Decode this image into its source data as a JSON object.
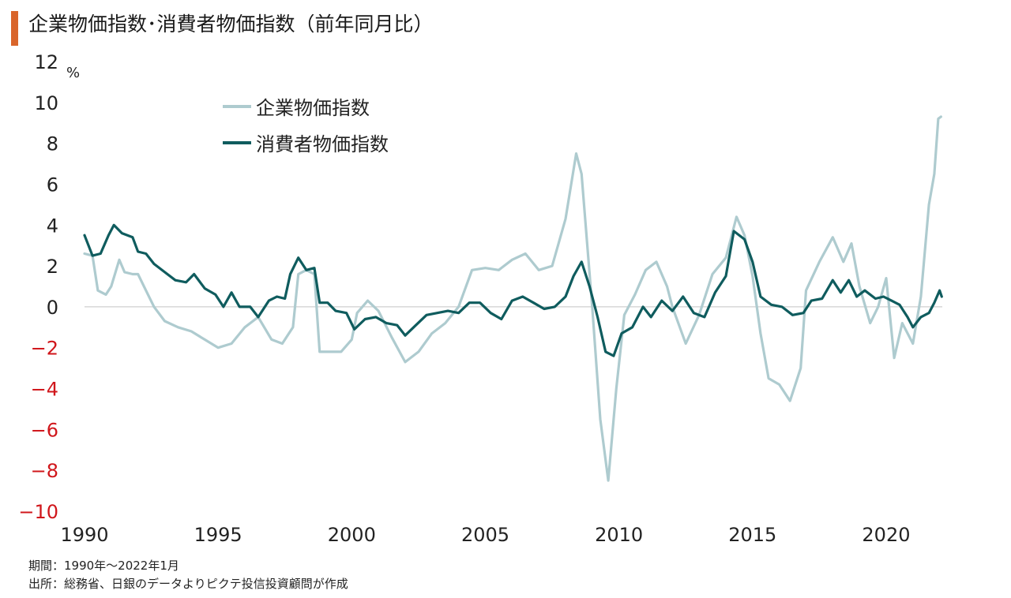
{
  "title": "企業物価指数･消費者物価指数（前年同月比）",
  "notes": {
    "period": "期間：1990年～2022年1月",
    "source": "出所：総務省、日銀のデータよりピクテ投信投資顧問が作成"
  },
  "colors": {
    "accent": "#d9652b",
    "cgpi": "#aecbcf",
    "cpi": "#0f5c5e",
    "negative_tick": "#d0161b",
    "zero_line": "#cfcfcf"
  },
  "chart_data": {
    "type": "line",
    "yunit": "%",
    "ylim": [
      -10,
      12
    ],
    "yticks": [
      12,
      10,
      8,
      6,
      4,
      2,
      0,
      -2,
      -4,
      -6,
      -8,
      -10
    ],
    "xlim": [
      1990.0,
      2022.1
    ],
    "xticks": [
      1990,
      1995,
      2000,
      2005,
      2010,
      2015,
      2020
    ],
    "grid": false,
    "legend_placement": "top-left",
    "series": [
      {
        "name": "企業物価指数",
        "color": "#aecbcf",
        "points": [
          [
            1990.0,
            2.6
          ],
          [
            1990.3,
            2.5
          ],
          [
            1990.5,
            0.8
          ],
          [
            1990.8,
            0.6
          ],
          [
            1991.0,
            1.0
          ],
          [
            1991.3,
            2.3
          ],
          [
            1991.5,
            1.7
          ],
          [
            1991.8,
            1.6
          ],
          [
            1992.0,
            1.6
          ],
          [
            1992.3,
            0.8
          ],
          [
            1992.6,
            0.0
          ],
          [
            1993.0,
            -0.7
          ],
          [
            1993.5,
            -1.0
          ],
          [
            1994.0,
            -1.2
          ],
          [
            1994.5,
            -1.6
          ],
          [
            1995.0,
            -2.0
          ],
          [
            1995.5,
            -1.8
          ],
          [
            1996.0,
            -1.0
          ],
          [
            1996.5,
            -0.5
          ],
          [
            1997.0,
            -1.6
          ],
          [
            1997.4,
            -1.8
          ],
          [
            1997.8,
            -1.0
          ],
          [
            1998.0,
            1.6
          ],
          [
            1998.3,
            1.8
          ],
          [
            1998.6,
            1.6
          ],
          [
            1998.8,
            -2.2
          ],
          [
            1999.2,
            -2.2
          ],
          [
            1999.6,
            -2.2
          ],
          [
            2000.0,
            -1.6
          ],
          [
            2000.2,
            -0.3
          ],
          [
            2000.6,
            0.3
          ],
          [
            2001.0,
            -0.2
          ],
          [
            2001.5,
            -1.5
          ],
          [
            2002.0,
            -2.7
          ],
          [
            2002.5,
            -2.2
          ],
          [
            2003.0,
            -1.3
          ],
          [
            2003.5,
            -0.8
          ],
          [
            2004.0,
            0.0
          ],
          [
            2004.5,
            1.8
          ],
          [
            2005.0,
            1.9
          ],
          [
            2005.5,
            1.8
          ],
          [
            2006.0,
            2.3
          ],
          [
            2006.5,
            2.6
          ],
          [
            2007.0,
            1.8
          ],
          [
            2007.5,
            2.0
          ],
          [
            2008.0,
            4.3
          ],
          [
            2008.4,
            7.5
          ],
          [
            2008.6,
            6.5
          ],
          [
            2009.0,
            0.0
          ],
          [
            2009.3,
            -5.5
          ],
          [
            2009.6,
            -8.5
          ],
          [
            2009.9,
            -4.0
          ],
          [
            2010.2,
            -0.4
          ],
          [
            2010.6,
            0.6
          ],
          [
            2011.0,
            1.8
          ],
          [
            2011.4,
            2.2
          ],
          [
            2011.8,
            1.0
          ],
          [
            2012.0,
            0.0
          ],
          [
            2012.5,
            -1.8
          ],
          [
            2013.0,
            -0.4
          ],
          [
            2013.5,
            1.6
          ],
          [
            2014.0,
            2.4
          ],
          [
            2014.4,
            4.4
          ],
          [
            2014.7,
            3.5
          ],
          [
            2015.0,
            1.5
          ],
          [
            2015.3,
            -1.3
          ],
          [
            2015.6,
            -3.5
          ],
          [
            2016.0,
            -3.8
          ],
          [
            2016.4,
            -4.6
          ],
          [
            2016.8,
            -3.0
          ],
          [
            2017.0,
            0.8
          ],
          [
            2017.5,
            2.2
          ],
          [
            2018.0,
            3.4
          ],
          [
            2018.4,
            2.2
          ],
          [
            2018.7,
            3.1
          ],
          [
            2019.0,
            1.0
          ],
          [
            2019.4,
            -0.8
          ],
          [
            2019.7,
            0.0
          ],
          [
            2020.0,
            1.4
          ],
          [
            2020.3,
            -2.5
          ],
          [
            2020.6,
            -0.8
          ],
          [
            2021.0,
            -1.8
          ],
          [
            2021.3,
            0.5
          ],
          [
            2021.6,
            5.0
          ],
          [
            2021.8,
            6.5
          ],
          [
            2021.95,
            9.2
          ],
          [
            2022.05,
            9.3
          ]
        ]
      },
      {
        "name": "消費者物価指数",
        "color": "#0f5c5e",
        "points": [
          [
            1990.0,
            3.5
          ],
          [
            1990.3,
            2.5
          ],
          [
            1990.6,
            2.6
          ],
          [
            1990.9,
            3.5
          ],
          [
            1991.1,
            4.0
          ],
          [
            1991.4,
            3.6
          ],
          [
            1991.8,
            3.4
          ],
          [
            1992.0,
            2.7
          ],
          [
            1992.3,
            2.6
          ],
          [
            1992.6,
            2.1
          ],
          [
            1993.0,
            1.7
          ],
          [
            1993.4,
            1.3
          ],
          [
            1993.8,
            1.2
          ],
          [
            1994.1,
            1.6
          ],
          [
            1994.5,
            0.9
          ],
          [
            1994.9,
            0.6
          ],
          [
            1995.2,
            0.0
          ],
          [
            1995.5,
            0.7
          ],
          [
            1995.8,
            0.0
          ],
          [
            1996.2,
            0.0
          ],
          [
            1996.5,
            -0.5
          ],
          [
            1996.9,
            0.3
          ],
          [
            1997.2,
            0.5
          ],
          [
            1997.5,
            0.4
          ],
          [
            1997.7,
            1.6
          ],
          [
            1998.0,
            2.4
          ],
          [
            1998.3,
            1.8
          ],
          [
            1998.6,
            1.9
          ],
          [
            1998.8,
            0.2
          ],
          [
            1999.1,
            0.2
          ],
          [
            1999.4,
            -0.2
          ],
          [
            1999.8,
            -0.3
          ],
          [
            2000.1,
            -1.1
          ],
          [
            2000.5,
            -0.6
          ],
          [
            2000.9,
            -0.5
          ],
          [
            2001.3,
            -0.8
          ],
          [
            2001.7,
            -0.9
          ],
          [
            2002.0,
            -1.4
          ],
          [
            2002.4,
            -0.9
          ],
          [
            2002.8,
            -0.4
          ],
          [
            2003.2,
            -0.3
          ],
          [
            2003.6,
            -0.2
          ],
          [
            2004.0,
            -0.3
          ],
          [
            2004.4,
            0.2
          ],
          [
            2004.8,
            0.2
          ],
          [
            2005.2,
            -0.3
          ],
          [
            2005.6,
            -0.6
          ],
          [
            2006.0,
            0.3
          ],
          [
            2006.4,
            0.5
          ],
          [
            2006.8,
            0.2
          ],
          [
            2007.2,
            -0.1
          ],
          [
            2007.6,
            0.0
          ],
          [
            2008.0,
            0.5
          ],
          [
            2008.3,
            1.5
          ],
          [
            2008.6,
            2.2
          ],
          [
            2008.9,
            1.0
          ],
          [
            2009.2,
            -0.5
          ],
          [
            2009.5,
            -2.2
          ],
          [
            2009.8,
            -2.4
          ],
          [
            2010.1,
            -1.3
          ],
          [
            2010.5,
            -1.0
          ],
          [
            2010.9,
            0.0
          ],
          [
            2011.2,
            -0.5
          ],
          [
            2011.6,
            0.3
          ],
          [
            2012.0,
            -0.2
          ],
          [
            2012.4,
            0.5
          ],
          [
            2012.8,
            -0.3
          ],
          [
            2013.2,
            -0.5
          ],
          [
            2013.6,
            0.7
          ],
          [
            2014.0,
            1.5
          ],
          [
            2014.3,
            3.7
          ],
          [
            2014.7,
            3.3
          ],
          [
            2015.0,
            2.2
          ],
          [
            2015.3,
            0.5
          ],
          [
            2015.7,
            0.1
          ],
          [
            2016.1,
            0.0
          ],
          [
            2016.5,
            -0.4
          ],
          [
            2016.9,
            -0.3
          ],
          [
            2017.2,
            0.3
          ],
          [
            2017.6,
            0.4
          ],
          [
            2018.0,
            1.3
          ],
          [
            2018.3,
            0.7
          ],
          [
            2018.6,
            1.3
          ],
          [
            2018.9,
            0.5
          ],
          [
            2019.2,
            0.8
          ],
          [
            2019.6,
            0.4
          ],
          [
            2019.9,
            0.5
          ],
          [
            2020.2,
            0.3
          ],
          [
            2020.5,
            0.1
          ],
          [
            2020.8,
            -0.5
          ],
          [
            2021.0,
            -1.0
          ],
          [
            2021.3,
            -0.5
          ],
          [
            2021.6,
            -0.3
          ],
          [
            2021.8,
            0.2
          ],
          [
            2022.0,
            0.8
          ],
          [
            2022.08,
            0.5
          ]
        ]
      }
    ]
  }
}
